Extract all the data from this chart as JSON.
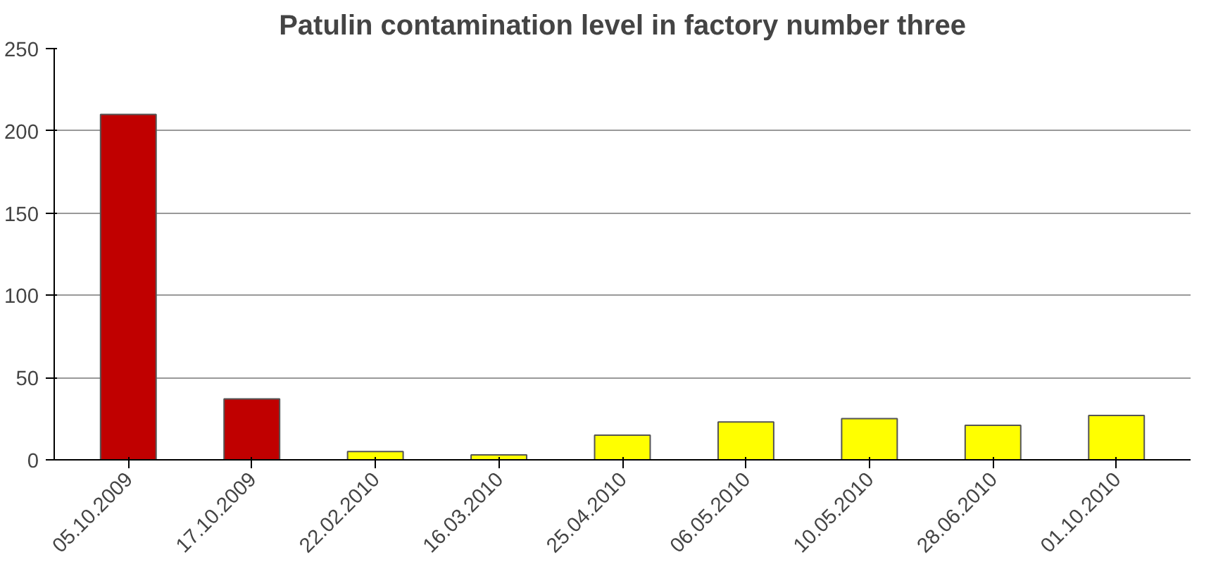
{
  "chart_data": {
    "type": "bar",
    "title": "Patulin contamination level in factory number three",
    "categories": [
      "05.10.2009",
      "17.10.2009",
      "22.02.2010",
      "16.03.2010",
      "25.04.2010",
      "06.05.2010",
      "10.05.2010",
      "28.06.2010",
      "01.10.2010"
    ],
    "values": [
      210,
      37,
      5,
      3,
      15,
      23,
      25,
      21,
      27
    ],
    "colors": [
      "#c00000",
      "#c00000",
      "#ffff00",
      "#ffff00",
      "#ffff00",
      "#ffff00",
      "#ffff00",
      "#ffff00",
      "#ffff00"
    ],
    "ylim": [
      0,
      250
    ],
    "yticks": [
      0,
      50,
      100,
      150,
      200,
      250
    ],
    "grid": "y"
  }
}
